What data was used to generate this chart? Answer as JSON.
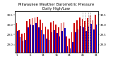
{
  "title": "Milwaukee Weather Barometric Pressure\nDaily High/Low",
  "days": [
    1,
    2,
    3,
    4,
    5,
    6,
    7,
    8,
    9,
    10,
    11,
    12,
    13,
    14,
    15,
    16,
    17,
    18,
    19,
    20,
    21,
    22,
    23,
    24,
    25,
    26,
    27,
    28,
    29,
    30,
    31
  ],
  "highs": [
    30.1,
    29.72,
    29.55,
    29.6,
    30.18,
    30.28,
    30.32,
    30.38,
    30.42,
    30.25,
    30.1,
    29.92,
    29.78,
    30.12,
    30.18,
    30.02,
    29.88,
    30.08,
    30.12,
    29.42,
    29.3,
    29.62,
    30.08,
    30.22,
    30.38,
    30.3,
    30.18,
    30.32,
    30.48,
    30.22,
    30.52
  ],
  "lows": [
    29.7,
    29.38,
    29.18,
    29.22,
    29.88,
    30.0,
    29.98,
    30.08,
    29.88,
    29.72,
    29.52,
    29.32,
    29.22,
    29.62,
    29.72,
    29.58,
    29.42,
    29.68,
    29.82,
    28.92,
    28.82,
    29.12,
    29.62,
    29.78,
    29.95,
    29.88,
    29.68,
    29.92,
    30.05,
    29.78,
    30.02
  ],
  "high_color": "#cc0000",
  "low_color": "#0000cc",
  "ylim_min": 28.6,
  "ylim_max": 30.7,
  "yticks": [
    29.0,
    29.5,
    30.0,
    30.5
  ],
  "ytick_labels": [
    "29.0",
    "29.5",
    "30.0",
    "30.5"
  ],
  "forecast_days": [
    26,
    27,
    28,
    29
  ],
  "bg_color": "#ffffff",
  "title_fontsize": 3.8,
  "tick_fontsize": 2.8,
  "bar_width": 0.42
}
